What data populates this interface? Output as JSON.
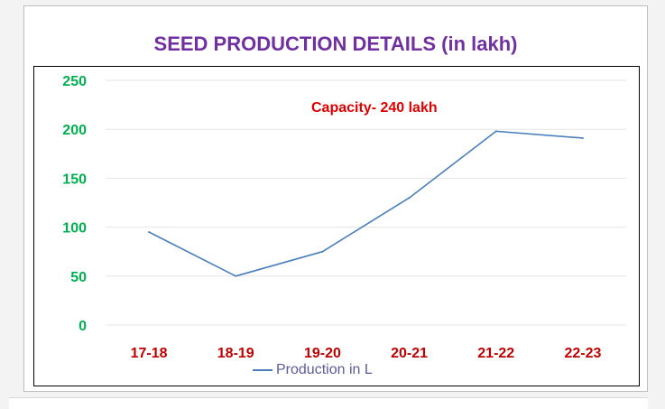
{
  "chart_data": {
    "type": "line",
    "title": "SEED PRODUCTION DETAILS (in lakh)",
    "categories": [
      "17-18",
      "18-19",
      "19-20",
      "20-21",
      "21-22",
      "22-23"
    ],
    "series": [
      {
        "name": "Production in L",
        "values": [
          95,
          50,
          75,
          130,
          198,
          191
        ]
      }
    ],
    "ylim": [
      0,
      250
    ],
    "yticks": [
      0,
      50,
      100,
      150,
      200,
      250
    ],
    "grid": true,
    "legend_position": "bottom",
    "annotation": "Capacity- 240 lakh",
    "colors": {
      "title": "#7030a0",
      "y_tick": "#00b050",
      "x_tick": "#c00000",
      "line": "#4a7ebb",
      "annotation": "#e00000",
      "grid": "#e6e6e6"
    }
  }
}
